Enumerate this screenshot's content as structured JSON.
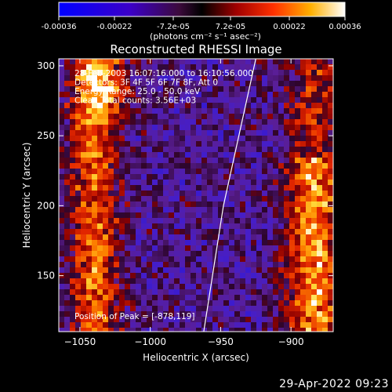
{
  "colorbar": {
    "ticks": [
      "-0.00036",
      "-0.00022",
      "-7.2e-05",
      "7.2e-05",
      "0.00022",
      "0.00036"
    ],
    "unit_label": "(photons cm⁻² s⁻¹ asec⁻²)",
    "range": [
      -0.00036,
      0.00036
    ]
  },
  "info_lines": [
    "28-Feb-2003 16:07:16.000 to 16:10:56.000",
    "Detectors: 3F 4F 5F 6F 7F 8F, Att 0",
    "Energy Range: 25.0 - 50.0 keV",
    "Clean   Total counts: 3.56E+03"
  ],
  "peak_text": "Position of Peak = [-878,119]",
  "footer_date": "29-Apr-2022 09:23",
  "colors": {
    "background": "#000000",
    "axes": "#ffffff",
    "limb": "#ffffff"
  },
  "chart_data": {
    "type": "heatmap",
    "title": "Reconstructed RHESSI Image",
    "xlabel": "Heliocentric X (arcsec)",
    "ylabel": "Heliocentric Y (arcsec)",
    "xlim": [
      -1065,
      -870
    ],
    "ylim": [
      110,
      305
    ],
    "xticks": [
      -1050,
      -1000,
      -950,
      -900
    ],
    "yticks": [
      150,
      200,
      250,
      300
    ],
    "xtick_labels": [
      "−1050",
      "−1000",
      "−950",
      "−900"
    ],
    "ytick_labels": [
      "150",
      "200",
      "250",
      "300"
    ],
    "colormap": "blue-purple-red-yellow-white",
    "peak_position": [
      -878,
      119
    ],
    "limb_points": [
      [
        -962,
        110
      ],
      [
        -948,
        200
      ],
      [
        -925,
        305
      ]
    ],
    "grid": false
  }
}
